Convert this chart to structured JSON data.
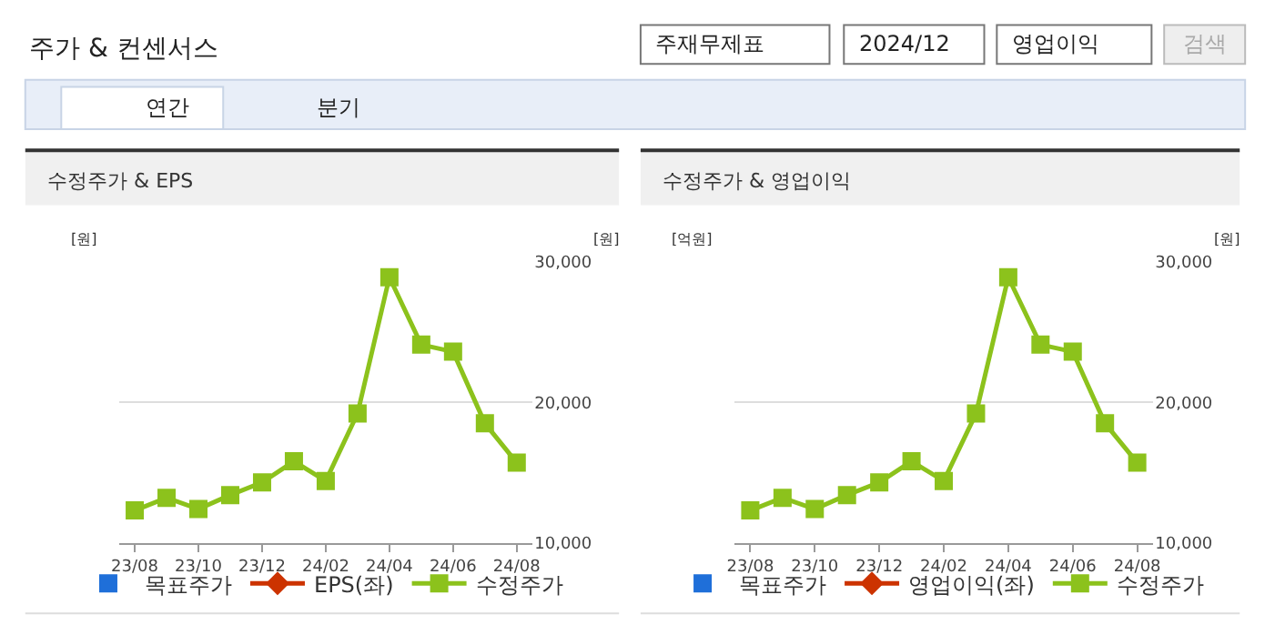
{
  "chart_data": [
    {
      "type": "other",
      "title": "주가 & 컨센서스",
      "annotations": [
        "주재무제표",
        "2024/12",
        "영업이익",
        "검색",
        "연간",
        "분기"
      ]
    },
    {
      "type": "line",
      "title": "수정주가 & EPS",
      "ylabel": "[원]",
      "y2label": "[원]",
      "categories": [
        "23/08",
        null,
        "23/10",
        null,
        "23/12",
        null,
        "24/02",
        null,
        "24/04",
        null,
        "24/06",
        null,
        "24/08"
      ],
      "series": [
        {
          "name": "목표주가",
          "color": "#1f6fd9",
          "type": "scatter",
          "marker": "square",
          "values": [
            null,
            null,
            null,
            null,
            null,
            null,
            null,
            null,
            null,
            null,
            null,
            null,
            null
          ]
        },
        {
          "name": "EPS(좌)",
          "color": "#cc3300",
          "marker": "diamond",
          "values": [
            null,
            null,
            null,
            null,
            null,
            null,
            null,
            null,
            null,
            null,
            null,
            null,
            null
          ]
        },
        {
          "name": "수정주가",
          "color": "#8cc21c",
          "marker": "square",
          "axis": "y2",
          "values": [
            12300,
            13200,
            12400,
            13400,
            14300,
            15800,
            14400,
            19200,
            28900,
            24100,
            23600,
            18500,
            15700
          ]
        }
      ],
      "y2lim": [
        10000,
        30000
      ],
      "y2ticks": [
        {
          "value": 10000,
          "label": "10,000"
        },
        {
          "value": 20000,
          "label": "20,000"
        },
        {
          "value": 30000,
          "label": "30,000"
        }
      ],
      "grid": "y",
      "legend": "bottom"
    },
    {
      "type": "line",
      "title": "수정주가 & 영업이익",
      "ylabel": "[억원]",
      "y2label": "[원]",
      "categories": [
        "23/08",
        null,
        "23/10",
        null,
        "23/12",
        null,
        "24/02",
        null,
        "24/04",
        null,
        "24/06",
        null,
        "24/08"
      ],
      "series": [
        {
          "name": "목표주가",
          "color": "#1f6fd9",
          "type": "scatter",
          "marker": "square",
          "values": [
            null,
            null,
            null,
            null,
            null,
            null,
            null,
            null,
            null,
            null,
            null,
            null,
            null
          ]
        },
        {
          "name": "영업이익(좌)",
          "color": "#cc3300",
          "marker": "diamond",
          "values": [
            null,
            null,
            null,
            null,
            null,
            null,
            null,
            null,
            null,
            null,
            null,
            null,
            null
          ]
        },
        {
          "name": "수정주가",
          "color": "#8cc21c",
          "marker": "square",
          "axis": "y2",
          "values": [
            12300,
            13200,
            12400,
            13400,
            14300,
            15800,
            14400,
            19200,
            28900,
            24100,
            23600,
            18500,
            15700
          ]
        }
      ],
      "y2lim": [
        10000,
        30000
      ],
      "y2ticks": [
        {
          "value": 10000,
          "label": "10,000"
        },
        {
          "value": 20000,
          "label": "20,000"
        },
        {
          "value": 30000,
          "label": "30,000"
        }
      ],
      "grid": "y",
      "legend": "bottom"
    }
  ]
}
